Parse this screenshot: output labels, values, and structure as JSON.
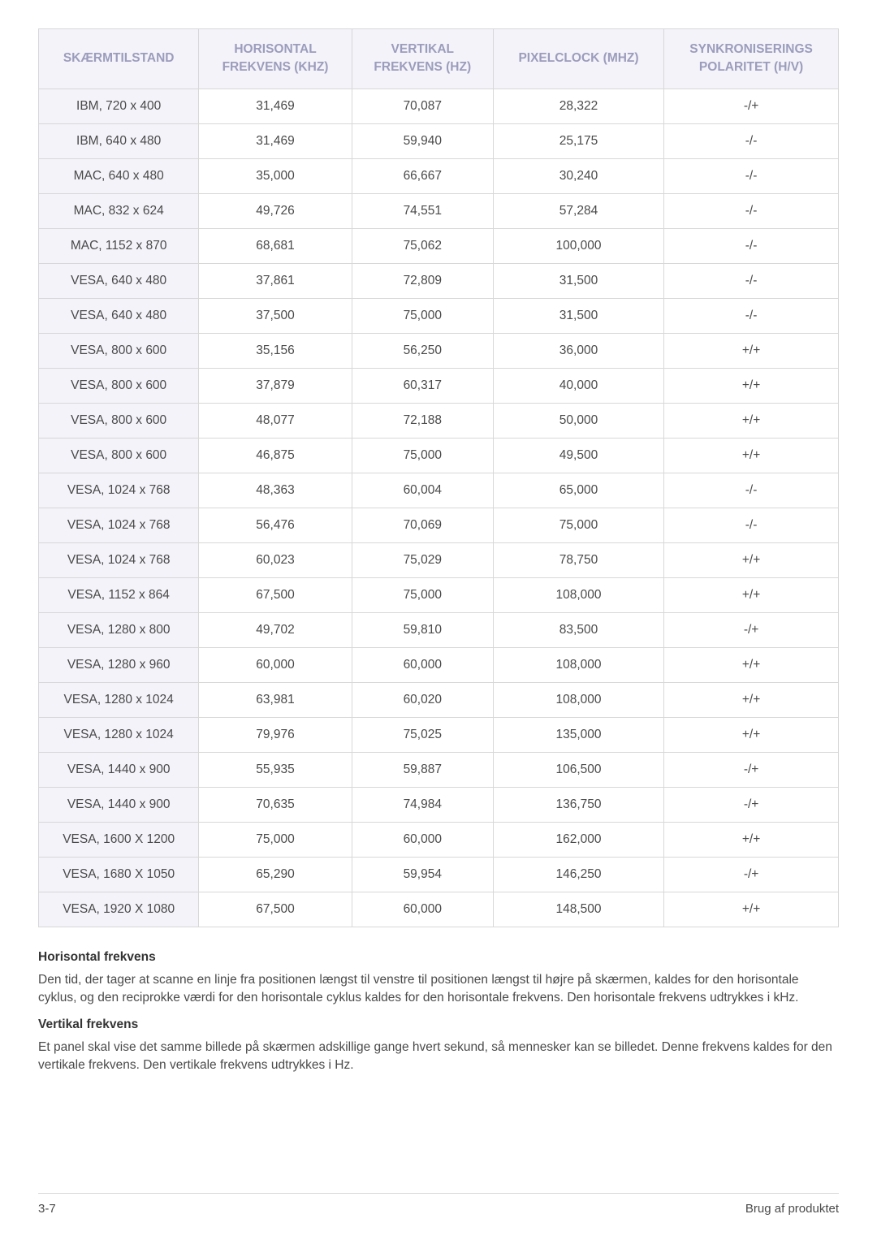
{
  "table": {
    "columns": [
      "SKÆRMTILSTAND",
      "HORISONTAL FREKVENS (KHZ)",
      "VERTIKAL FREKVENS (HZ)",
      "PIXELCLOCK (MHZ)",
      "SYNKRONISERINGS POLARITET (H/V)"
    ],
    "rows": [
      [
        "IBM, 720 x 400",
        "31,469",
        "70,087",
        "28,322",
        "-/+"
      ],
      [
        "IBM, 640 x 480",
        "31,469",
        "59,940",
        "25,175",
        "-/-"
      ],
      [
        "MAC, 640 x 480",
        "35,000",
        "66,667",
        "30,240",
        "-/-"
      ],
      [
        "MAC, 832 x 624",
        "49,726",
        "74,551",
        "57,284",
        "-/-"
      ],
      [
        "MAC, 1152 x 870",
        "68,681",
        "75,062",
        "100,000",
        "-/-"
      ],
      [
        "VESA, 640 x 480",
        "37,861",
        "72,809",
        "31,500",
        "-/-"
      ],
      [
        "VESA, 640 x 480",
        "37,500",
        "75,000",
        "31,500",
        "-/-"
      ],
      [
        "VESA, 800 x 600",
        "35,156",
        "56,250",
        "36,000",
        "+/+"
      ],
      [
        "VESA, 800 x 600",
        "37,879",
        "60,317",
        "40,000",
        "+/+"
      ],
      [
        "VESA, 800 x 600",
        "48,077",
        "72,188",
        "50,000",
        "+/+"
      ],
      [
        "VESA, 800 x 600",
        "46,875",
        "75,000",
        "49,500",
        "+/+"
      ],
      [
        "VESA, 1024 x 768",
        "48,363",
        "60,004",
        "65,000",
        "-/-"
      ],
      [
        "VESA, 1024 x 768",
        "56,476",
        "70,069",
        "75,000",
        "-/-"
      ],
      [
        "VESA, 1024 x 768",
        "60,023",
        "75,029",
        "78,750",
        "+/+"
      ],
      [
        "VESA, 1152 x 864",
        "67,500",
        "75,000",
        "108,000",
        "+/+"
      ],
      [
        "VESA, 1280 x 800",
        "49,702",
        "59,810",
        "83,500",
        "-/+"
      ],
      [
        "VESA, 1280 x 960",
        "60,000",
        "60,000",
        "108,000",
        "+/+"
      ],
      [
        "VESA, 1280 x 1024",
        "63,981",
        "60,020",
        "108,000",
        "+/+"
      ],
      [
        "VESA, 1280 x 1024",
        "79,976",
        "75,025",
        "135,000",
        "+/+"
      ],
      [
        "VESA, 1440 x 900",
        "55,935",
        "59,887",
        "106,500",
        "-/+"
      ],
      [
        "VESA, 1440 x 900",
        "70,635",
        "74,984",
        "136,750",
        "-/+"
      ],
      [
        "VESA, 1600 X 1200",
        "75,000",
        "60,000",
        "162,000",
        "+/+"
      ],
      [
        "VESA, 1680 X 1050",
        "65,290",
        "59,954",
        "146,250",
        "-/+"
      ],
      [
        "VESA, 1920 X 1080",
        "67,500",
        "60,000",
        "148,500",
        "+/+"
      ]
    ],
    "header_bg": "#f3f3f9",
    "header_color": "#9c9cbd",
    "border_color": "#d8d8d8",
    "mode_col_bg": "#f3f3f9",
    "cell_color": "#4a4a4a",
    "fontsize": 15.5
  },
  "sections": [
    {
      "heading": "Horisontal frekvens",
      "body": "Den tid, der tager at scanne en linje fra positionen længst til venstre til positionen længst til højre på skærmen, kaldes for den horisontale cyklus, og den reciprokke værdi for den horisontale cyklus kaldes for den horisontale frekvens. Den horisontale frekvens udtrykkes i kHz."
    },
    {
      "heading": "Vertikal frekvens",
      "body": "Et panel skal vise det samme billede på skærmen adskillige gange hvert sekund, så mennesker kan se billedet. Denne frekvens kaldes for den vertikale frekvens. Den vertikale frekvens udtrykkes i Hz."
    }
  ],
  "footer": {
    "left": "3-7",
    "right": "Brug af produktet"
  }
}
